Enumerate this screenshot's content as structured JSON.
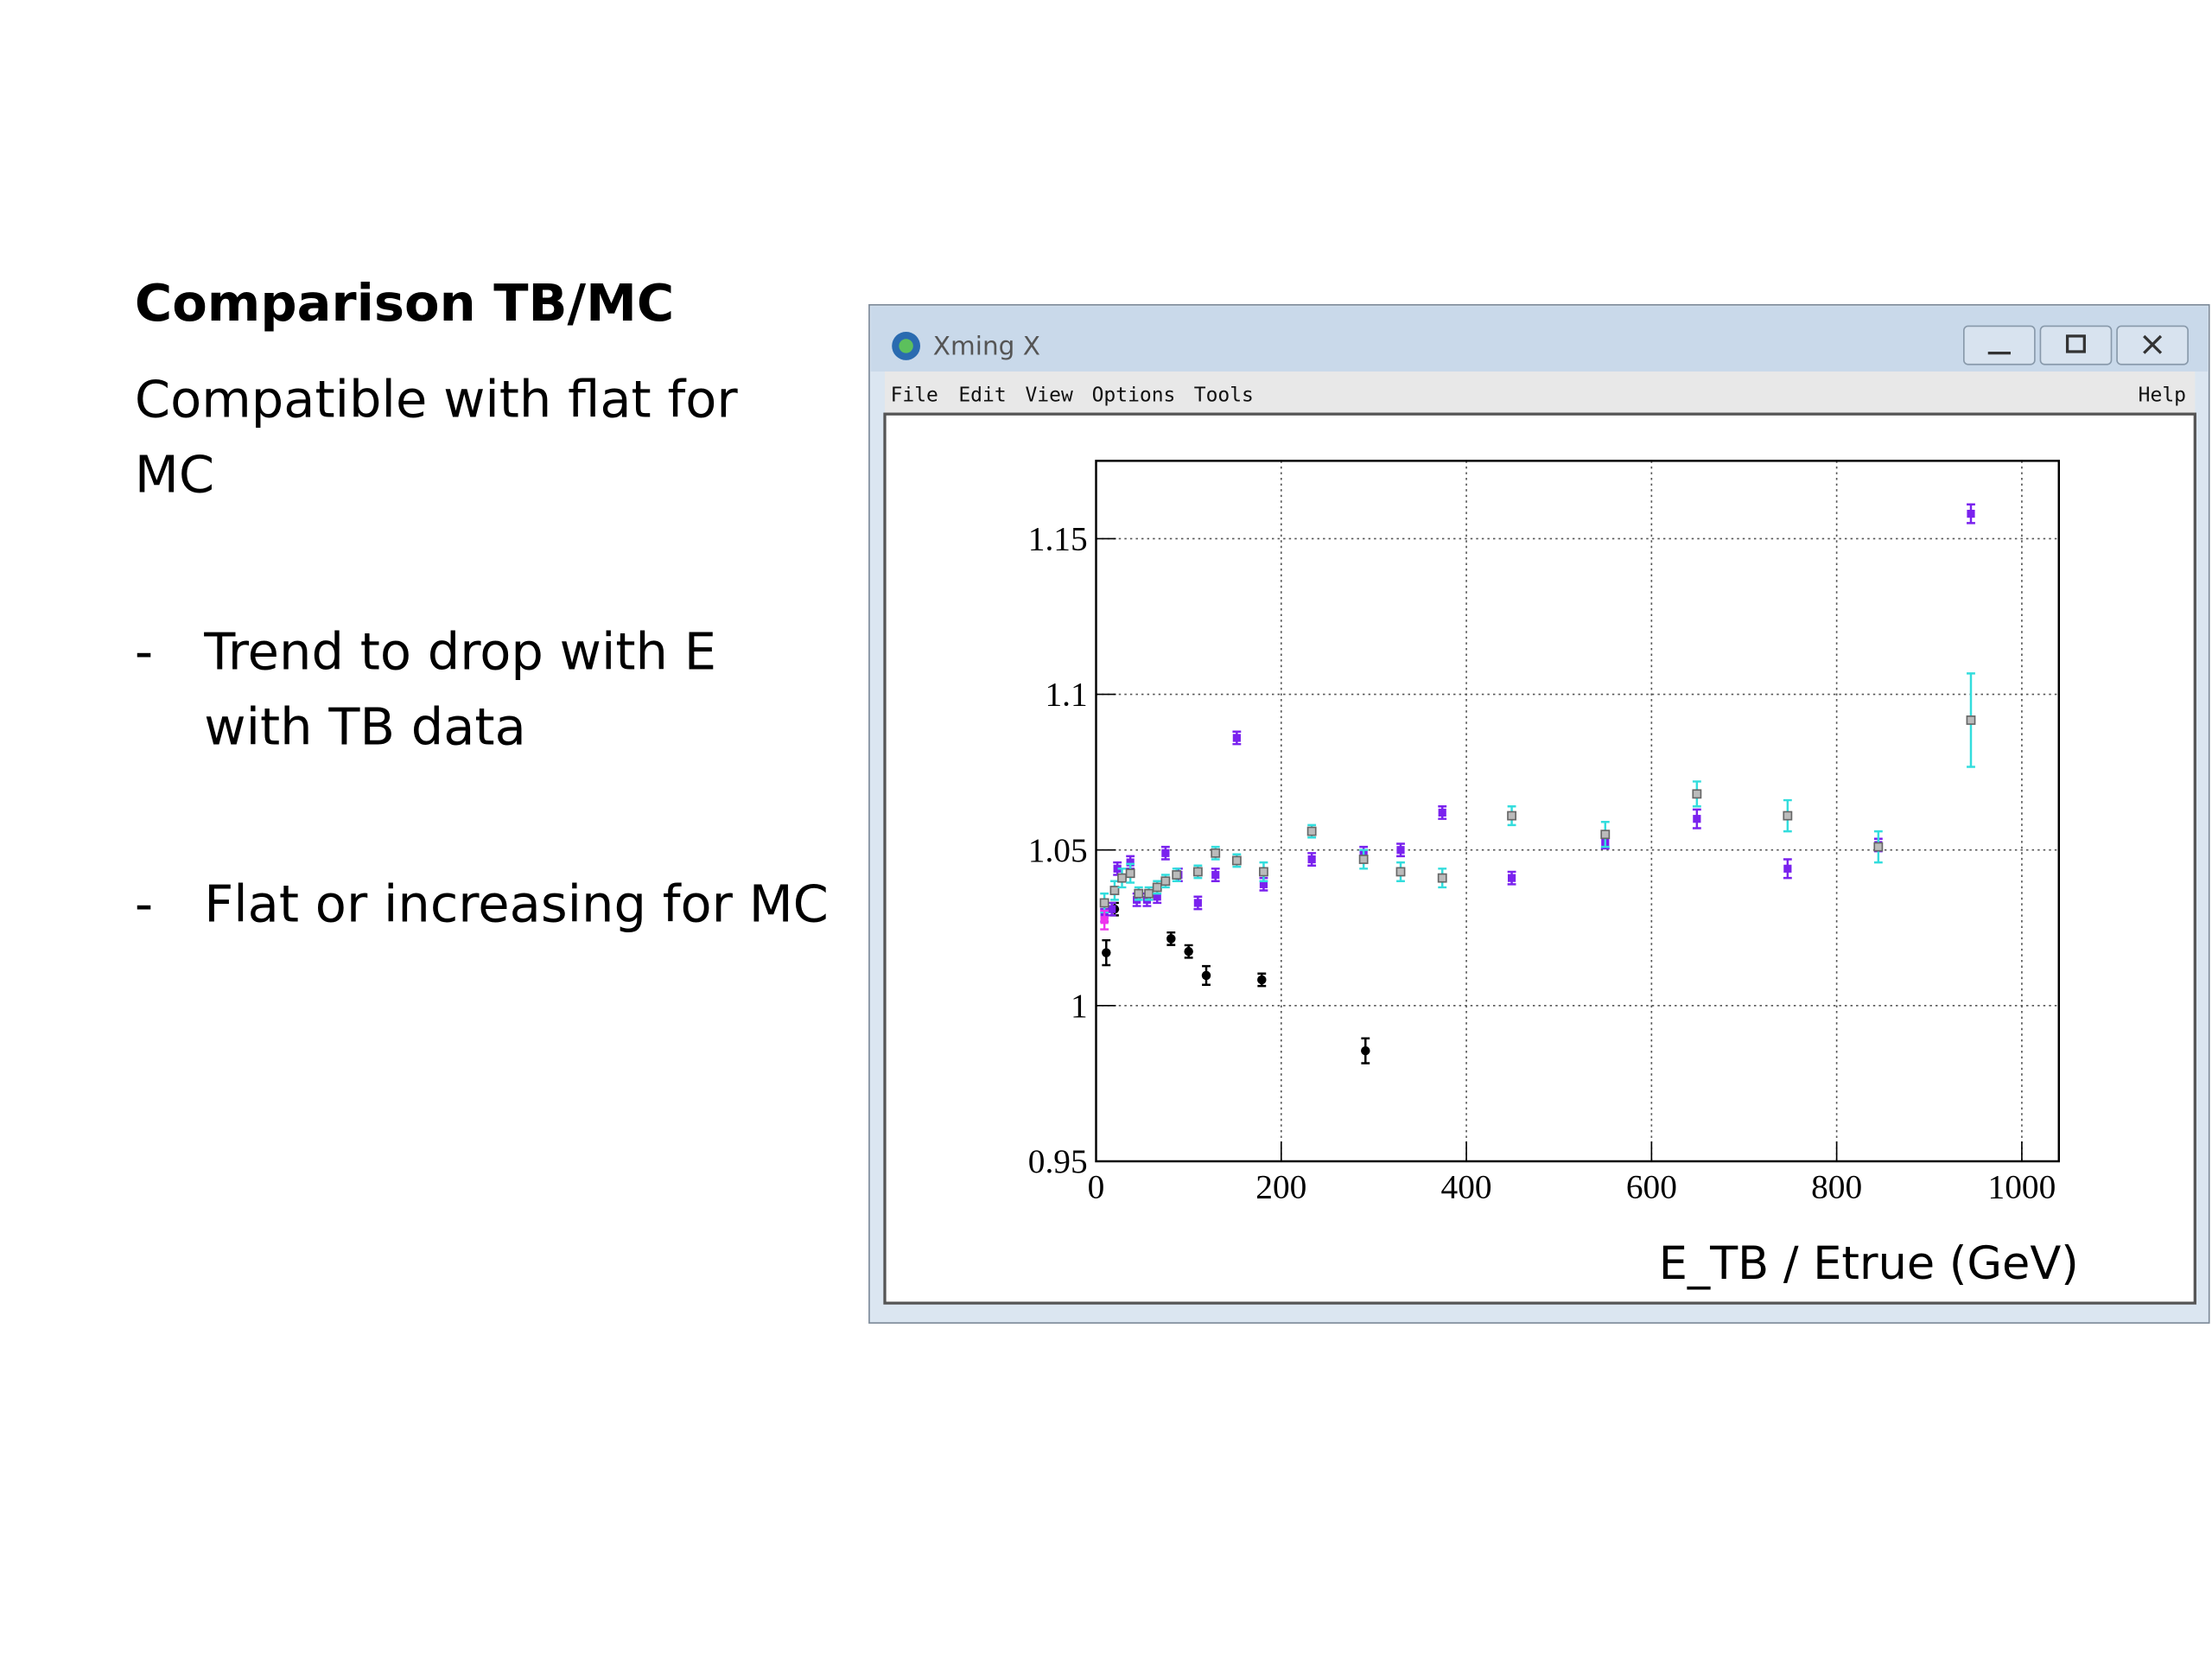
{
  "slide": {
    "title": "Comparison TB/MC",
    "intro": [
      "Compatible with flat for",
      "MC"
    ],
    "bullets": [
      [
        "Trend to drop with E",
        "with TB data"
      ],
      [
        "Flat or increasing for MC"
      ]
    ]
  },
  "window": {
    "title": "Xming X",
    "menu": [
      "File",
      "Edit",
      "View",
      "Options",
      "Tools"
    ],
    "help": "Help"
  },
  "chart_data": {
    "type": "scatter",
    "x_label": "E_TB / Etrue (GeV)",
    "xlim": [
      0,
      1040
    ],
    "xticks": [
      0,
      200,
      400,
      600,
      800,
      1000
    ],
    "ylim": [
      0.95,
      1.175
    ],
    "yticks": [
      0.95,
      1,
      1.05,
      1.1,
      1.15
    ],
    "grid": true,
    "series": [
      {
        "color": "#000000",
        "marker": "circle",
        "x": [
          11,
          20,
          81,
          100,
          119,
          179,
          291
        ],
        "values": [
          1.017,
          1.031,
          1.0215,
          1.0174,
          1.0097,
          1.0083,
          0.9855
        ],
        "errors": [
          0.004,
          0.002,
          0.002,
          0.002,
          0.003,
          0.002,
          0.004
        ]
      },
      {
        "color": "#7a22ee",
        "marker": "square",
        "x": [
          9,
          17,
          23,
          37,
          44,
          55,
          66,
          75,
          89,
          110,
          129,
          152,
          181,
          233,
          289,
          329,
          374,
          449,
          550,
          649,
          747,
          845,
          945
        ],
        "values": [
          1.029,
          1.031,
          1.044,
          1.046,
          1.034,
          1.034,
          1.035,
          1.049,
          1.042,
          1.033,
          1.042,
          1.086,
          1.039,
          1.047,
          1.049,
          1.05,
          1.062,
          1.041,
          1.0525,
          1.06,
          1.044,
          1.0516,
          1.158
        ],
        "errors": [
          0.002,
          0.002,
          0.002,
          0.002,
          0.002,
          0.002,
          0.002,
          0.002,
          0.002,
          0.002,
          0.002,
          0.002,
          0.002,
          0.002,
          0.002,
          0.002,
          0.002,
          0.002,
          0.002,
          0.003,
          0.003,
          0.002,
          0.003
        ]
      },
      {
        "color": "#33dddd",
        "marker": "open-square",
        "x": [
          9,
          20,
          28,
          37,
          46,
          57,
          66,
          75,
          87,
          110,
          129,
          152,
          181,
          233,
          289,
          329,
          374,
          449,
          550,
          649,
          747,
          845,
          945
        ],
        "values": [
          1.033,
          1.037,
          1.041,
          1.0425,
          1.036,
          1.036,
          1.038,
          1.04,
          1.042,
          1.043,
          1.049,
          1.0466,
          1.043,
          1.056,
          1.047,
          1.043,
          1.041,
          1.061,
          1.055,
          1.068,
          1.061,
          1.051,
          1.0917
        ],
        "errors": [
          0.003,
          0.003,
          0.003,
          0.003,
          0.002,
          0.002,
          0.002,
          0.002,
          0.002,
          0.002,
          0.002,
          0.002,
          0.003,
          0.002,
          0.003,
          0.003,
          0.003,
          0.003,
          0.004,
          0.004,
          0.005,
          0.005,
          0.015
        ]
      },
      {
        "color": "#ee33ee",
        "marker": "square",
        "x": [
          9
        ],
        "values": [
          1.0275
        ],
        "errors": [
          0.003
        ]
      }
    ]
  }
}
